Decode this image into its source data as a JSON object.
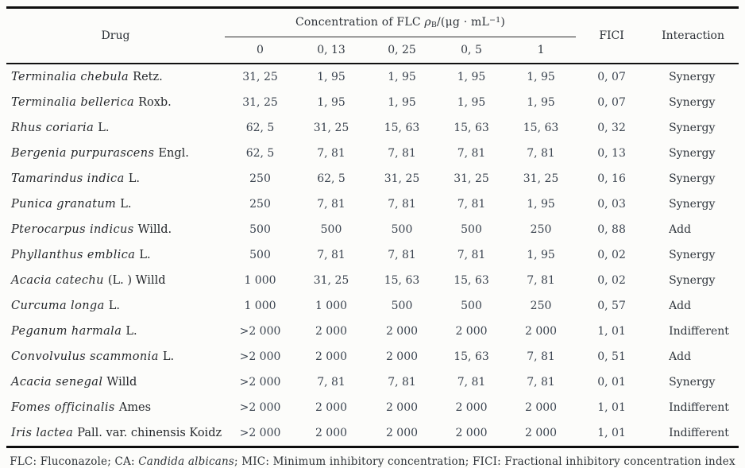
{
  "ink": "#2e3338",
  "background": "#fcfcfa",
  "table": {
    "header": {
      "drug": "Drug",
      "concentration": {
        "prefix": "Concentration of FLC ",
        "rho": "ρ",
        "rho_sub": "B",
        "unit_pre": "/(μg · mL",
        "unit_sup": "−1",
        "unit_post": ")"
      },
      "subcolumns": [
        "0",
        "0, 13",
        "0, 25",
        "0, 5",
        "1"
      ],
      "fici": "FICI",
      "interaction": "Interaction"
    },
    "rows": [
      {
        "name_italic": "Terminalia chebula",
        "name_roman": "Retz.",
        "values": [
          "31, 25",
          "1, 95",
          "1, 95",
          "1, 95",
          "1, 95"
        ],
        "fici": "0, 07",
        "interaction": "Synergy"
      },
      {
        "name_italic": "Terminalia bellerica",
        "name_roman": "Roxb.",
        "values": [
          "31, 25",
          "1, 95",
          "1, 95",
          "1, 95",
          "1, 95"
        ],
        "fici": "0, 07",
        "interaction": "Synergy"
      },
      {
        "name_italic": "Rhus coriaria",
        "name_roman": "L.",
        "values": [
          "62, 5",
          "31, 25",
          "15, 63",
          "15, 63",
          "15, 63"
        ],
        "fici": "0, 32",
        "interaction": "Synergy"
      },
      {
        "name_italic": "Bergenia purpurascens",
        "name_roman": "Engl.",
        "values": [
          "62, 5",
          "7, 81",
          "7, 81",
          "7, 81",
          "7, 81"
        ],
        "fici": "0, 13",
        "interaction": "Synergy"
      },
      {
        "name_italic": "Tamarindus indica",
        "name_roman": "L.",
        "values": [
          "250",
          "62, 5",
          "31, 25",
          "31, 25",
          "31, 25"
        ],
        "fici": "0, 16",
        "interaction": "Synergy"
      },
      {
        "name_italic": "Punica granatum",
        "name_roman": "L.",
        "values": [
          "250",
          "7, 81",
          "7, 81",
          "7, 81",
          "1, 95"
        ],
        "fici": "0, 03",
        "interaction": "Synergy"
      },
      {
        "name_italic": "Pterocarpus indicus",
        "name_roman": "Willd.",
        "values": [
          "500",
          "500",
          "500",
          "500",
          "250"
        ],
        "fici": "0, 88",
        "interaction": "Add"
      },
      {
        "name_italic": "Phyllanthus emblica",
        "name_roman": "L.",
        "values": [
          "500",
          "7, 81",
          "7, 81",
          "7, 81",
          "1, 95"
        ],
        "fici": "0, 02",
        "interaction": "Synergy"
      },
      {
        "name_italic": "Acacia catechu",
        "name_roman": "(L. ) Willd",
        "values": [
          "1 000",
          "31, 25",
          "15, 63",
          "15, 63",
          "7, 81"
        ],
        "fici": "0, 02",
        "interaction": "Synergy"
      },
      {
        "name_italic": "Curcuma longa",
        "name_roman": "L.",
        "values": [
          "1 000",
          "1 000",
          "500",
          "500",
          "250"
        ],
        "fici": "0, 57",
        "interaction": "Add"
      },
      {
        "name_italic": "Peganum harmala",
        "name_roman": "L.",
        "values": [
          ">2 000",
          "2 000",
          "2 000",
          "2 000",
          "2 000"
        ],
        "fici": "1, 01",
        "interaction": "Indifferent"
      },
      {
        "name_italic": "Convolvulus scammonia",
        "name_roman": "L.",
        "values": [
          ">2 000",
          "2 000",
          "2 000",
          "15, 63",
          "7, 81"
        ],
        "fici": "0, 51",
        "interaction": "Add"
      },
      {
        "name_italic": "Acacia senegal",
        "name_roman": "Willd",
        "values": [
          ">2 000",
          "7, 81",
          "7, 81",
          "7, 81",
          "7, 81"
        ],
        "fici": "0, 01",
        "interaction": "Synergy"
      },
      {
        "name_italic": "Fomes officinalis",
        "name_roman": "Ames",
        "values": [
          ">2 000",
          "2 000",
          "2 000",
          "2 000",
          "2 000"
        ],
        "fici": "1, 01",
        "interaction": "Indifferent"
      },
      {
        "name_italic": "Iris lactea",
        "name_roman": "Pall. var. chinensis Koidz",
        "values": [
          ">2 000",
          "2 000",
          "2 000",
          "2 000",
          "2 000"
        ],
        "fici": "1, 01",
        "interaction": "Indifferent"
      }
    ]
  },
  "footnote": {
    "before_italic": "FLC: Fluconazole; CA: ",
    "italic": "Candida albicans",
    "after_italic": "; MIC: Minimum inhibitory concentration; FICI: Fractional inhibitory concentration index"
  }
}
